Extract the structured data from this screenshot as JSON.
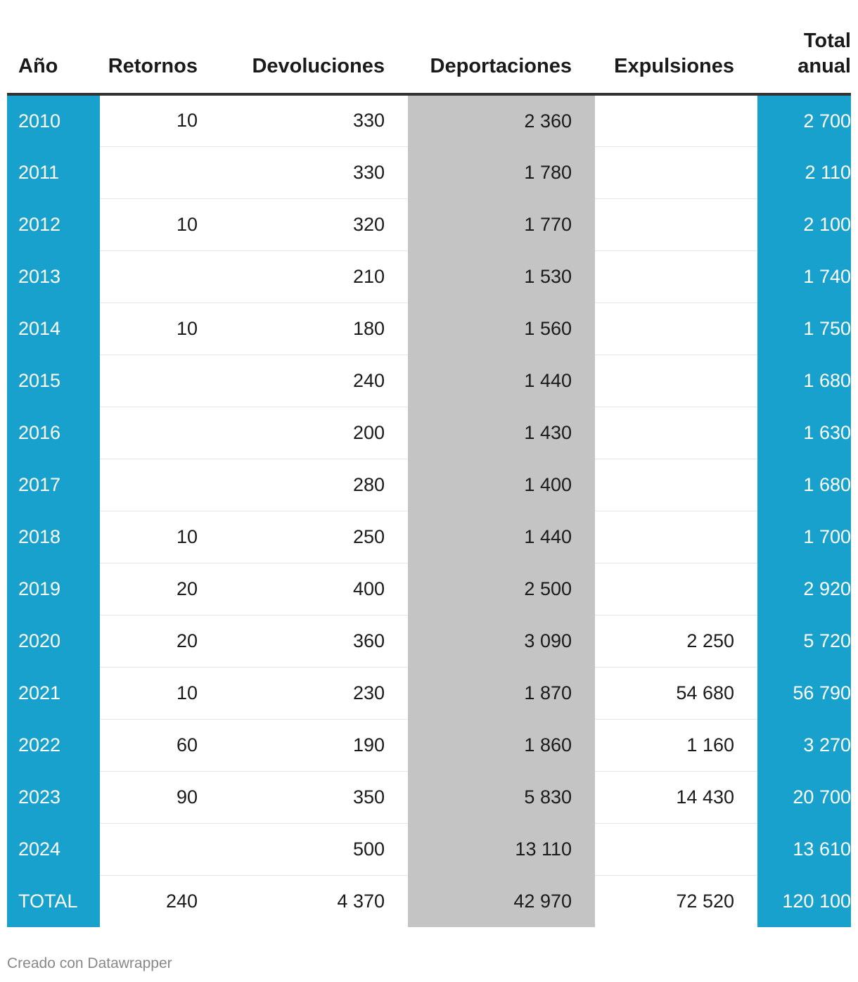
{
  "chart_data": {
    "type": "table",
    "columns": [
      "Año",
      "Retornos",
      "Devoluciones",
      "Deportaciones",
      "Expulsiones",
      "Total anual"
    ],
    "header_lines": {
      "year": [
        "Año"
      ],
      "retornos": [
        "Retornos"
      ],
      "devoluciones": [
        "Devoluciones"
      ],
      "deportaciones": [
        "Deportaciones"
      ],
      "expulsiones": [
        "Expulsiones"
      ],
      "total": [
        "Total",
        "anual"
      ]
    },
    "rows": [
      [
        "2010",
        "10",
        "330",
        "2 360",
        "",
        "2 700"
      ],
      [
        "2011",
        "",
        "330",
        "1 780",
        "",
        "2 110"
      ],
      [
        "2012",
        "10",
        "320",
        "1 770",
        "",
        "2 100"
      ],
      [
        "2013",
        "",
        "210",
        "1 530",
        "",
        "1 740"
      ],
      [
        "2014",
        "10",
        "180",
        "1 560",
        "",
        "1 750"
      ],
      [
        "2015",
        "",
        "240",
        "1 440",
        "",
        "1 680"
      ],
      [
        "2016",
        "",
        "200",
        "1 430",
        "",
        "1 630"
      ],
      [
        "2017",
        "",
        "280",
        "1 400",
        "",
        "1 680"
      ],
      [
        "2018",
        "10",
        "250",
        "1 440",
        "",
        "1 700"
      ],
      [
        "2019",
        "20",
        "400",
        "2 500",
        "",
        "2 920"
      ],
      [
        "2020",
        "20",
        "360",
        "3 090",
        "2 250",
        "5 720"
      ],
      [
        "2021",
        "10",
        "230",
        "1 870",
        "54 680",
        "56 790"
      ],
      [
        "2022",
        "60",
        "190",
        "1 860",
        "1 160",
        "3 270"
      ],
      [
        "2023",
        "90",
        "350",
        "5 830",
        "14 430",
        "20 700"
      ],
      [
        "2024",
        "",
        "500",
        "13 110",
        "",
        "13 610"
      ],
      [
        "TOTAL",
        "240",
        "4 370",
        "42 970",
        "72 520",
        "120 100"
      ]
    ],
    "highlight_colors": {
      "year_column": "#18a1cd",
      "deportaciones_column": "#c4c4c4",
      "total_column": "#18a1cd"
    }
  },
  "footer": {
    "credit": "Creado con Datawrapper"
  }
}
